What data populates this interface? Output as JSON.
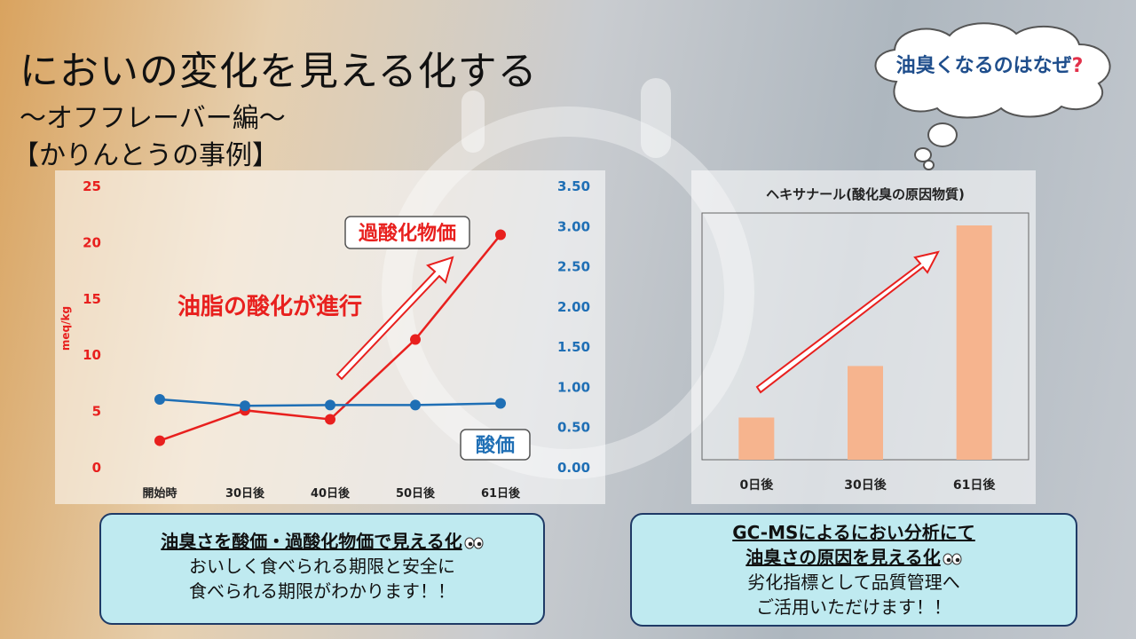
{
  "title": "においの変化を見える化する",
  "subtitle": "～オフフレーバー編～",
  "example": "【かりんとうの事例】",
  "cloud_text": "油臭くなるのはなぜ",
  "cloud_mark": "?",
  "colors": {
    "peroxide": "#e8201e",
    "acid": "#1f6fb5",
    "bar": "#f6b48e",
    "title_blue": "#1f4e8c"
  },
  "chart_data": [
    {
      "type": "line",
      "categories": [
        "開始時",
        "30日後",
        "40日後",
        "50日後",
        "61日後"
      ],
      "series": [
        {
          "name": "過酸化物価",
          "axis": "left",
          "values": [
            2.4,
            5.1,
            4.3,
            11.4,
            20.7
          ]
        },
        {
          "name": "酸価",
          "axis": "right",
          "values": [
            0.85,
            0.77,
            0.78,
            0.78,
            0.8
          ]
        }
      ],
      "ylabel": "meq/kg",
      "ylim": [
        0,
        25
      ],
      "yticks": [
        "0",
        "5",
        "10",
        "15",
        "20",
        "25"
      ],
      "y2lim": [
        0,
        3.5
      ],
      "y2ticks": [
        "0.00",
        "0.50",
        "1.00",
        "1.50",
        "2.00",
        "2.50",
        "3.00",
        "3.50"
      ],
      "annotations": [
        "油脂の酸化が進行"
      ],
      "grid": false
    },
    {
      "type": "bar",
      "title": "ヘキサナール(酸化臭の原因物質)",
      "categories": [
        "0日後",
        "30日後",
        "61日後"
      ],
      "values": [
        0.18,
        0.4,
        1.0
      ],
      "grid": false
    }
  ],
  "info_left": {
    "heading": "油臭さを酸価・過酸化物価で見える化",
    "line1": "おいしく食べられる期限と安全に",
    "line2": "食べられる期限がわかります！！"
  },
  "info_right": {
    "heading1": "GC-MSによるにおい分析にて",
    "heading2": "油臭さの原因を見える化",
    "line1": "劣化指標として品質管理へ",
    "line2": "ご活用いただけます！！"
  }
}
